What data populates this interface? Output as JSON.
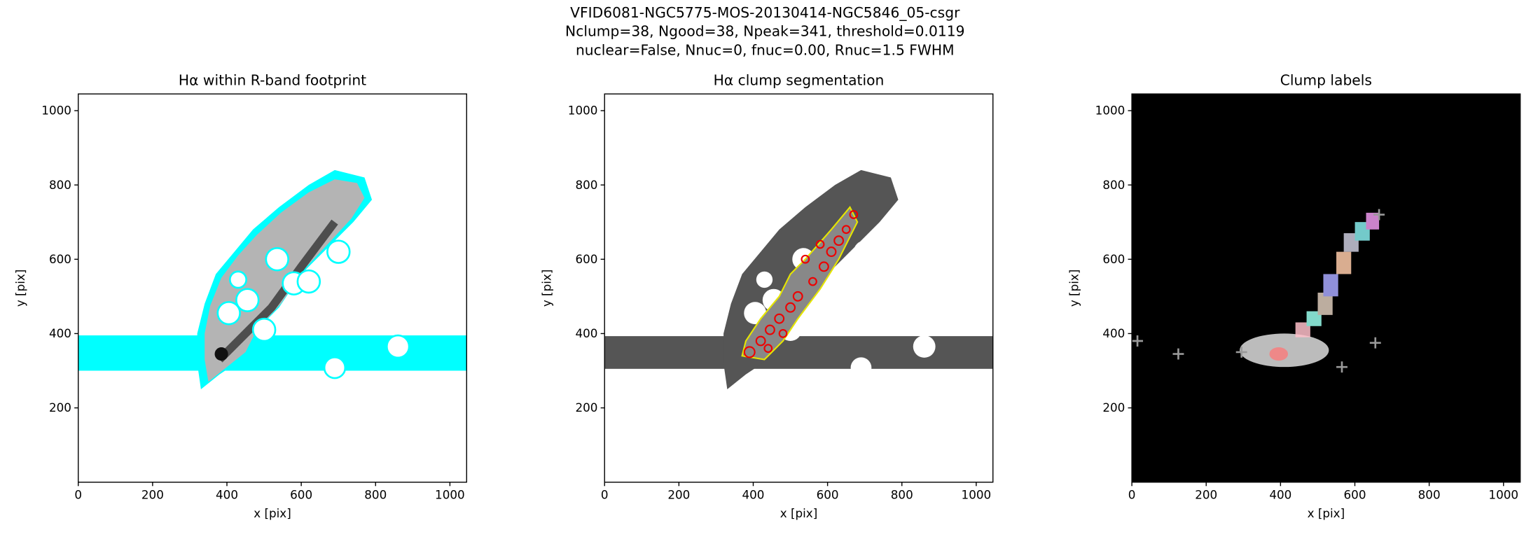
{
  "figure": {
    "title": [
      "VFID6081-NGC5775-MOS-20130414-NGC5846_05-csgr",
      "Nclump=38, Ngood=38, Npeak=341, threshold=0.0119",
      "nuclear=False, Nnuc=0, fnuc=0.00, Rnuc=1.5 FWHM"
    ]
  },
  "chart_data": [
    {
      "type": "image",
      "title": "Hα within R-band footprint",
      "xlabel": "x [pix]",
      "ylabel": "y [pix]",
      "xlim": [
        0,
        1045
      ],
      "ylim": [
        0,
        1045
      ],
      "xticks": [
        0,
        200,
        400,
        600,
        800,
        1000
      ],
      "yticks": [
        200,
        400,
        600,
        800,
        1000
      ]
    },
    {
      "type": "image",
      "title": "Hα clump segmentation",
      "xlabel": "x [pix]",
      "ylabel": "y [pix]",
      "xlim": [
        0,
        1045
      ],
      "ylim": [
        0,
        1045
      ],
      "xticks": [
        0,
        200,
        400,
        600,
        800,
        1000
      ],
      "yticks": [
        200,
        400,
        600,
        800,
        1000
      ]
    },
    {
      "type": "image",
      "title": "Clump labels",
      "xlabel": "x [pix]",
      "ylabel": "y [pix]",
      "xlim": [
        0,
        1045
      ],
      "ylim": [
        0,
        1045
      ],
      "xticks": [
        0,
        200,
        400,
        600,
        800,
        1000
      ],
      "yticks": [
        200,
        400,
        600,
        800,
        1000
      ]
    }
  ]
}
